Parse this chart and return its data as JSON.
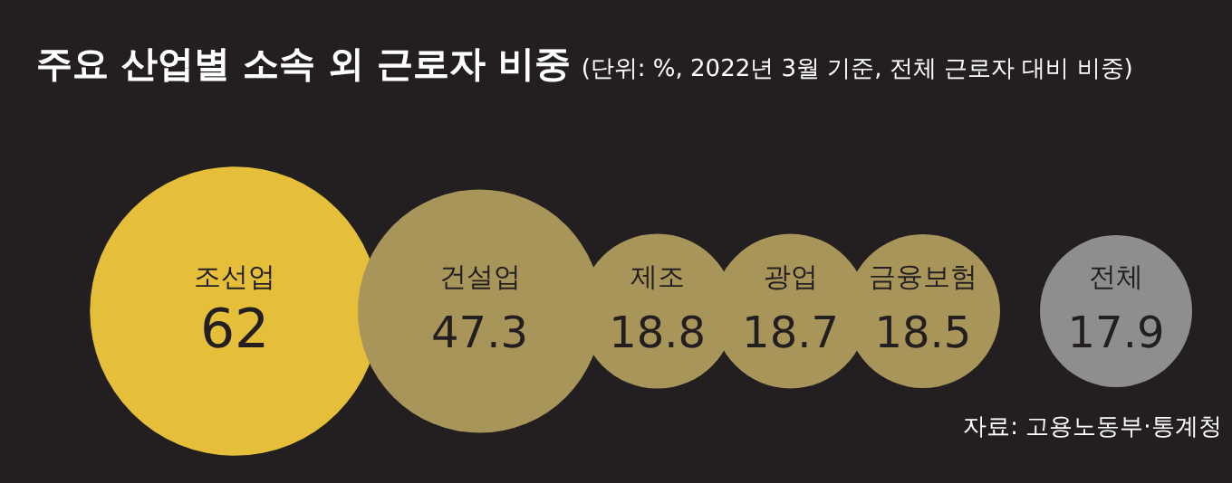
{
  "chart_data": {
    "type": "other",
    "title": "주요 산업별 소속 외 근로자 비중",
    "subtitle": "(단위: %, 2022년 3월 기준, 전체 근로자 대비 비중)",
    "categories": [
      "조선업",
      "건설업",
      "제조",
      "광업",
      "금융보험",
      "전체"
    ],
    "values": [
      62,
      47.3,
      18.8,
      18.7,
      18.5,
      17.9
    ],
    "colors": [
      "#e6bf3a",
      "#a8955a",
      "#a8955a",
      "#a8955a",
      "#a8955a",
      "#8e8e8e"
    ],
    "data_labels": true,
    "annotations": [
      "자료: 고용노동부·통계청"
    ]
  }
}
